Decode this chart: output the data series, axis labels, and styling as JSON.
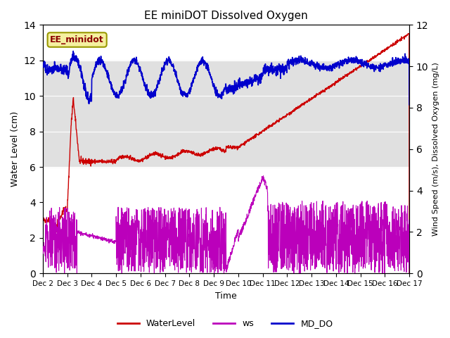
{
  "title": "EE miniDOT Dissolved Oxygen",
  "ylabel_left": "Water Level (cm)",
  "ylabel_right": "Wind Speed (m/s), Dissolved Oxygen (mg/L)",
  "xlabel": "Time",
  "annotation_text": "EE_minidot",
  "xlim_days": [
    2,
    17
  ],
  "ylim_left": [
    0,
    14
  ],
  "ylim_right": [
    0,
    12
  ],
  "xtick_labels": [
    "Dec 2",
    "Dec 3",
    "Dec 4",
    "Dec 5",
    "Dec 6",
    "Dec 7",
    "Dec 8",
    "Dec 9",
    "Dec 10",
    "Dec 11",
    "Dec 12",
    "Dec 13",
    "Dec 14",
    "Dec 15",
    "Dec 16",
    "Dec 17"
  ],
  "xtick_positions": [
    2,
    3,
    4,
    5,
    6,
    7,
    8,
    9,
    10,
    11,
    12,
    13,
    14,
    15,
    16,
    17
  ],
  "yticks_left": [
    0,
    2,
    4,
    6,
    8,
    10,
    12,
    14
  ],
  "yticks_right": [
    0,
    2,
    4,
    6,
    8,
    10,
    12
  ],
  "color_waterLevel": "#cc0000",
  "color_ws": "#bb00bb",
  "color_MDDO": "#0000cc",
  "shade_ymin": 6,
  "shade_ymax": 12,
  "background_color": "#ffffff",
  "shade_color": "#e0e0e0",
  "legend_entries": [
    "WaterLevel",
    "ws",
    "MD_DO"
  ]
}
